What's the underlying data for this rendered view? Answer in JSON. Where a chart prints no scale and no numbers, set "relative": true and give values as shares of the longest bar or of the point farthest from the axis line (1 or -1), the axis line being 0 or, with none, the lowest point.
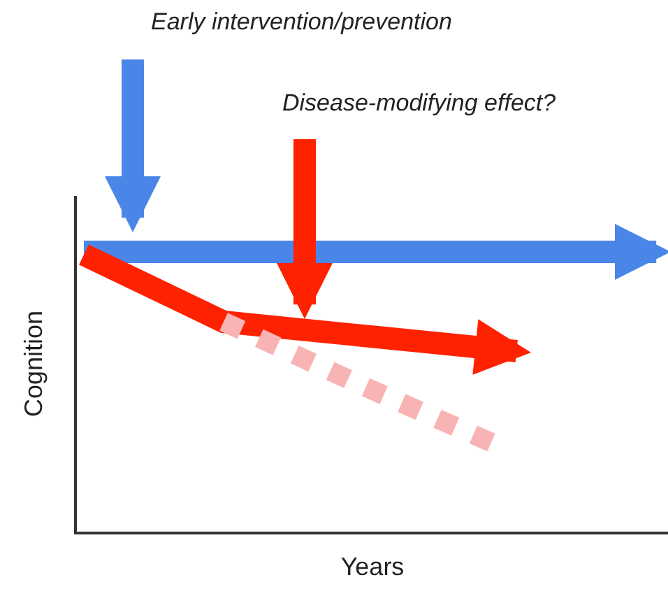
{
  "chart_data": {
    "type": "line",
    "relative": true,
    "xlabel": "Years",
    "ylabel": "Cognition",
    "categories": [
      null,
      null,
      null,
      null,
      null
    ],
    "annotations": [
      "Early intervention/prevention",
      "Disease-modifying effect?"
    ],
    "series": [
      {
        "color": "#4a86e8",
        "values": [
          1,
          1,
          1,
          1,
          1
        ]
      },
      {
        "color": "#ff2200",
        "values": [
          0.99,
          0.75,
          0.7,
          0.65,
          null
        ]
      },
      {
        "color": "#f8b4b4",
        "line_style": "dotted",
        "values": [
          null,
          0.75,
          0.52,
          0.3,
          null
        ]
      }
    ]
  }
}
